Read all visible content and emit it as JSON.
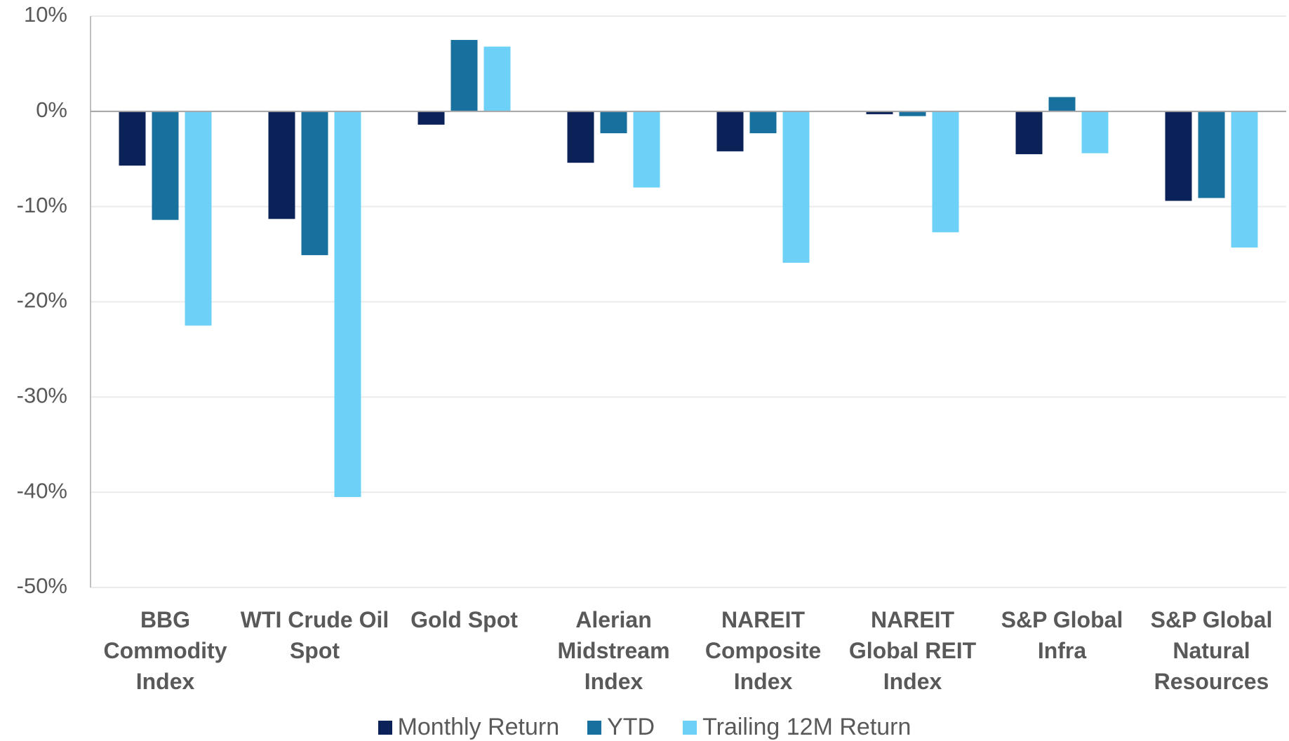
{
  "chart_data": {
    "type": "bar",
    "categories": [
      "BBG Commodity Index",
      "WTI Crude Oil Spot",
      "Gold Spot",
      "Alerian Midstream Index",
      "NAREIT Composite Index",
      "NAREIT Global REIT Index",
      "S&P Global Infra",
      "S&P Global Natural Resources"
    ],
    "series": [
      {
        "name": "Monthly Return",
        "color": "#0b2259",
        "values": [
          -5.7,
          -11.3,
          -1.4,
          -5.4,
          -4.2,
          -0.3,
          -4.5,
          -9.4
        ]
      },
      {
        "name": "YTD",
        "color": "#17709e",
        "values": [
          -11.4,
          -15.1,
          7.5,
          -2.3,
          -2.3,
          -0.5,
          1.5,
          -9.1
        ]
      },
      {
        "name": "Trailing 12M Return",
        "color": "#6dd0f7",
        "values": [
          -22.5,
          -40.5,
          6.8,
          -8.0,
          -15.9,
          -12.7,
          -4.4,
          -14.3
        ]
      }
    ],
    "ylim": [
      -50,
      10
    ],
    "yticks": [
      {
        "value": -50,
        "label": "-50%"
      },
      {
        "value": -40,
        "label": "-40%"
      },
      {
        "value": -30,
        "label": "-30%"
      },
      {
        "value": -20,
        "label": "-20%"
      },
      {
        "value": -10,
        "label": "-10%"
      },
      {
        "value": 0,
        "label": "0%"
      },
      {
        "value": 10,
        "label": "10%"
      }
    ],
    "grid": true,
    "legend": "bottom"
  }
}
